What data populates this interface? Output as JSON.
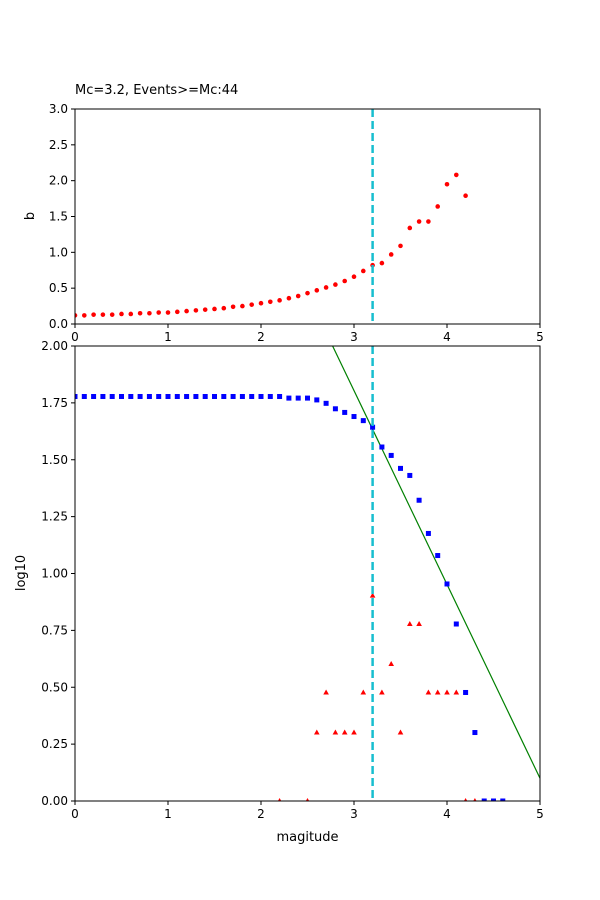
{
  "chart_data": [
    {
      "type": "scatter",
      "title": "Mc=3.2, Events>=Mc:44",
      "xlabel": "",
      "ylabel": "b",
      "xlim": [
        0,
        5
      ],
      "ylim": [
        0,
        3.0
      ],
      "xticks": [
        "0",
        "1",
        "2",
        "3",
        "4",
        "5"
      ],
      "yticks": [
        "0.0",
        "0.5",
        "1.0",
        "1.5",
        "2.0",
        "2.5",
        "3.0"
      ],
      "mc_line_x": 3.2,
      "colors": {
        "points": "#ff0000",
        "mc_line": "#17becf"
      },
      "series": [
        {
          "marker": "circle",
          "x": [
            0.0,
            0.1,
            0.2,
            0.3,
            0.4,
            0.5,
            0.6,
            0.7,
            0.8,
            0.9,
            1.0,
            1.1,
            1.2,
            1.3,
            1.4,
            1.5,
            1.6,
            1.7,
            1.8,
            1.9,
            2.0,
            2.1,
            2.2,
            2.3,
            2.4,
            2.5,
            2.6,
            2.7,
            2.8,
            2.9,
            3.0,
            3.1,
            3.2,
            3.3,
            3.4,
            3.5,
            3.6,
            3.7,
            3.8,
            3.9,
            4.0,
            4.1,
            4.2
          ],
          "y": [
            0.12,
            0.12,
            0.13,
            0.13,
            0.13,
            0.14,
            0.14,
            0.15,
            0.15,
            0.16,
            0.16,
            0.17,
            0.18,
            0.19,
            0.2,
            0.21,
            0.22,
            0.24,
            0.25,
            0.27,
            0.29,
            0.31,
            0.33,
            0.36,
            0.39,
            0.43,
            0.47,
            0.51,
            0.55,
            0.6,
            0.66,
            0.74,
            0.82,
            0.85,
            0.97,
            1.09,
            1.34,
            1.43,
            1.43,
            1.64,
            1.95,
            2.08,
            1.79
          ]
        }
      ]
    },
    {
      "type": "scatter",
      "title": "",
      "xlabel": "magitude",
      "ylabel": "log10",
      "xlim": [
        0,
        5
      ],
      "ylim": [
        0,
        2.0
      ],
      "xticks": [
        "0",
        "1",
        "2",
        "3",
        "4",
        "5"
      ],
      "yticks": [
        "0.00",
        "0.25",
        "0.50",
        "0.75",
        "1.00",
        "1.25",
        "1.50",
        "1.75",
        "2.00"
      ],
      "mc_line_x": 3.2,
      "fit_line": {
        "x": [
          2.77,
          5.0
        ],
        "y": [
          2.0,
          0.1
        ],
        "color": "#008000"
      },
      "colors": {
        "cumulative": "#0000ff",
        "noncumulative": "#ff0000",
        "mc_line": "#17becf"
      },
      "series": [
        {
          "marker": "square",
          "x": [
            0.0,
            0.1,
            0.2,
            0.3,
            0.4,
            0.5,
            0.6,
            0.7,
            0.8,
            0.9,
            1.0,
            1.1,
            1.2,
            1.3,
            1.4,
            1.5,
            1.6,
            1.7,
            1.8,
            1.9,
            2.0,
            2.1,
            2.2,
            2.3,
            2.4,
            2.5,
            2.6,
            2.7,
            2.8,
            2.9,
            3.0,
            3.1,
            3.2,
            3.3,
            3.4,
            3.5,
            3.6,
            3.7,
            3.8,
            3.9,
            4.0,
            4.1,
            4.2,
            4.3,
            4.4,
            4.5,
            4.6
          ],
          "y": [
            1.778,
            1.778,
            1.778,
            1.778,
            1.778,
            1.778,
            1.778,
            1.778,
            1.778,
            1.778,
            1.778,
            1.778,
            1.778,
            1.778,
            1.778,
            1.778,
            1.778,
            1.778,
            1.778,
            1.778,
            1.778,
            1.778,
            1.778,
            1.771,
            1.771,
            1.771,
            1.763,
            1.748,
            1.724,
            1.708,
            1.69,
            1.672,
            1.643,
            1.556,
            1.519,
            1.462,
            1.431,
            1.322,
            1.176,
            1.079,
            0.954,
            0.778,
            0.477,
            0.301,
            0.0,
            0.0,
            0.0
          ]
        },
        {
          "marker": "triangle",
          "x": [
            2.2,
            2.5,
            2.6,
            2.7,
            2.8,
            2.9,
            3.0,
            3.1,
            3.2,
            3.3,
            3.4,
            3.5,
            3.6,
            3.7,
            3.8,
            3.9,
            4.0,
            4.1,
            4.2,
            4.3
          ],
          "y": [
            0.0,
            0.0,
            0.301,
            0.477,
            0.301,
            0.301,
            0.301,
            0.477,
            0.903,
            0.477,
            0.602,
            0.301,
            0.778,
            0.778,
            0.477,
            0.477,
            0.477,
            0.477,
            0.0,
            0.0
          ]
        }
      ]
    }
  ]
}
